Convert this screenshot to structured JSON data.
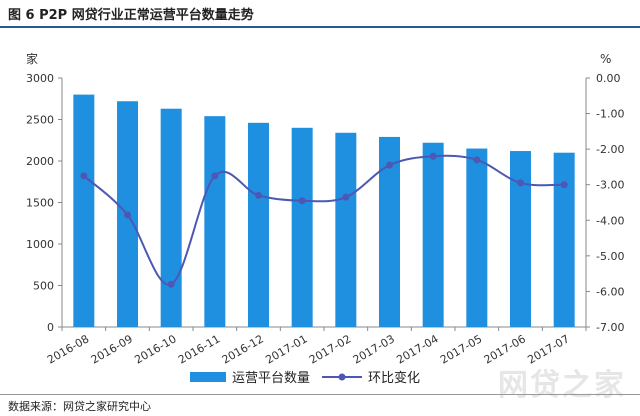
{
  "figure_title": "图 6   P2P 网贷行业正常运营平台数量走势",
  "source_note": "数据来源：网贷之家研究中心",
  "watermark": "网贷之家",
  "chart_data": {
    "type": "bar",
    "categories": [
      "2016-08",
      "2016-09",
      "2016-10",
      "2016-11",
      "2016-12",
      "2017-01",
      "2017-02",
      "2017-03",
      "2017-04",
      "2017-05",
      "2017-06",
      "2017-07"
    ],
    "series": [
      {
        "name": "运营平台数量",
        "type": "bar",
        "axis": "left",
        "color": "#1f8fe0",
        "values": [
          2800,
          2720,
          2630,
          2540,
          2460,
          2400,
          2340,
          2290,
          2220,
          2150,
          2120,
          2100
        ]
      },
      {
        "name": "环比变化",
        "type": "line",
        "axis": "right",
        "color": "#4c58b4",
        "values": [
          -2.75,
          -3.85,
          -5.8,
          -2.75,
          -3.3,
          -3.45,
          -3.35,
          -2.45,
          -2.2,
          -2.3,
          -2.95,
          -3.0
        ]
      }
    ],
    "y_left": {
      "unit": "家",
      "min": 0,
      "max": 3000,
      "ticks": [
        "0",
        "500",
        "1000",
        "1500",
        "2000",
        "2500",
        "3000"
      ]
    },
    "y_right": {
      "unit": "%",
      "min": -7,
      "max": 0,
      "ticks": [
        "-7.00",
        "-6.00",
        "-5.00",
        "-4.00",
        "-3.00",
        "-2.00",
        "-1.00",
        "0.00"
      ]
    },
    "legend": {
      "position": "bottom",
      "entries": [
        "运营平台数量",
        "环比变化"
      ]
    },
    "grid": false
  }
}
